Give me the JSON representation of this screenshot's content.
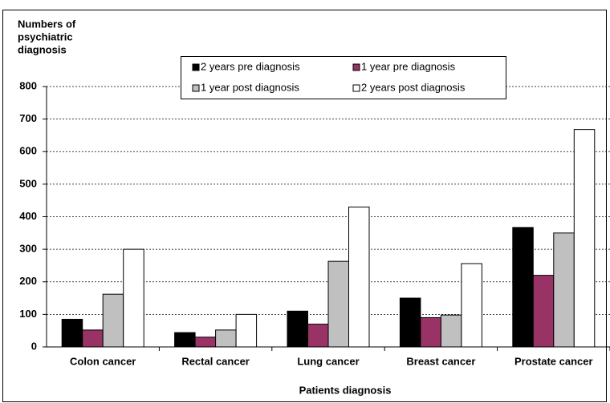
{
  "chart_data": {
    "type": "bar",
    "y_label": [
      "Numbers of",
      "psychiatric",
      "diagnosis"
    ],
    "x_label": "Patients diagnosis",
    "categories": [
      "Colon cancer",
      "Rectal cancer",
      "Lung cancer",
      "Breast cancer",
      "Prostate cancer"
    ],
    "series": [
      {
        "name": "2 years pre diagnosis",
        "color": "#000000",
        "values": [
          85,
          44,
          110,
          150,
          367
        ]
      },
      {
        "name": "1 year pre diagnosis",
        "color": "#993366",
        "values": [
          52,
          30,
          70,
          90,
          220
        ]
      },
      {
        "name": "1 year post diagnosis",
        "color": "#c0c0c0",
        "values": [
          162,
          52,
          263,
          98,
          350
        ]
      },
      {
        "name": "2 years post diagnosis",
        "color": "#ffffff",
        "values": [
          300,
          100,
          430,
          256,
          668
        ]
      }
    ],
    "ylim": [
      0,
      800
    ],
    "yticks": [
      0,
      100,
      200,
      300,
      400,
      500,
      600,
      700,
      800
    ],
    "grid": true,
    "legend": "top"
  }
}
